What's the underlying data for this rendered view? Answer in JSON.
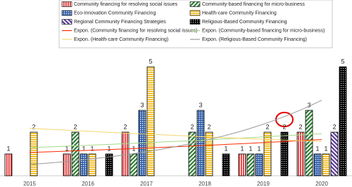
{
  "chart_data": {
    "type": "bar",
    "categories": [
      "2015",
      "2016",
      "2017",
      "2018",
      "2019",
      "2020"
    ],
    "series": [
      {
        "name": "Community financing for resolving social issues",
        "color": "#e02020",
        "pattern": "vertical",
        "values": [
          1,
          1,
          2,
          null,
          1,
          2
        ],
        "trendline": {
          "name": "Expon. (Community financing for resolving social issues)",
          "color": "#ff2a00"
        }
      },
      {
        "name": "Community-based financing for micro-business",
        "color": "#2e7d32",
        "pattern": "diagonal",
        "values": [
          null,
          2,
          1,
          2,
          1,
          3
        ],
        "trendline": {
          "name": "Expon. (Community-based financing for micro-business)",
          "color": "#a5d88a"
        }
      },
      {
        "name": "Eco-Innovation Community Financing",
        "color": "#2f5da8",
        "pattern": "grid",
        "values": [
          null,
          1,
          3,
          3,
          1,
          1
        ]
      },
      {
        "name": "Health-care Community Financing",
        "color": "#f0b400",
        "pattern": "horizontal",
        "values": [
          2,
          1,
          5,
          2,
          2,
          1
        ],
        "trendline": {
          "name": "Expon. (Health-care Community Financing)",
          "color": "#f5d76e"
        }
      },
      {
        "name": "Regional Community Financing Strategies",
        "color": "#5b3a9a",
        "pattern": "diagonal",
        "values": [
          null,
          null,
          null,
          null,
          null,
          2
        ]
      },
      {
        "name": "Religious-Based Community Financing",
        "color": "#000000",
        "pattern": "dots",
        "values": [
          null,
          1,
          null,
          1,
          2,
          5
        ],
        "trendline": {
          "name": "Expon. (Religious-Based Community Financing)",
          "color": "#999999"
        }
      }
    ]
  }
}
